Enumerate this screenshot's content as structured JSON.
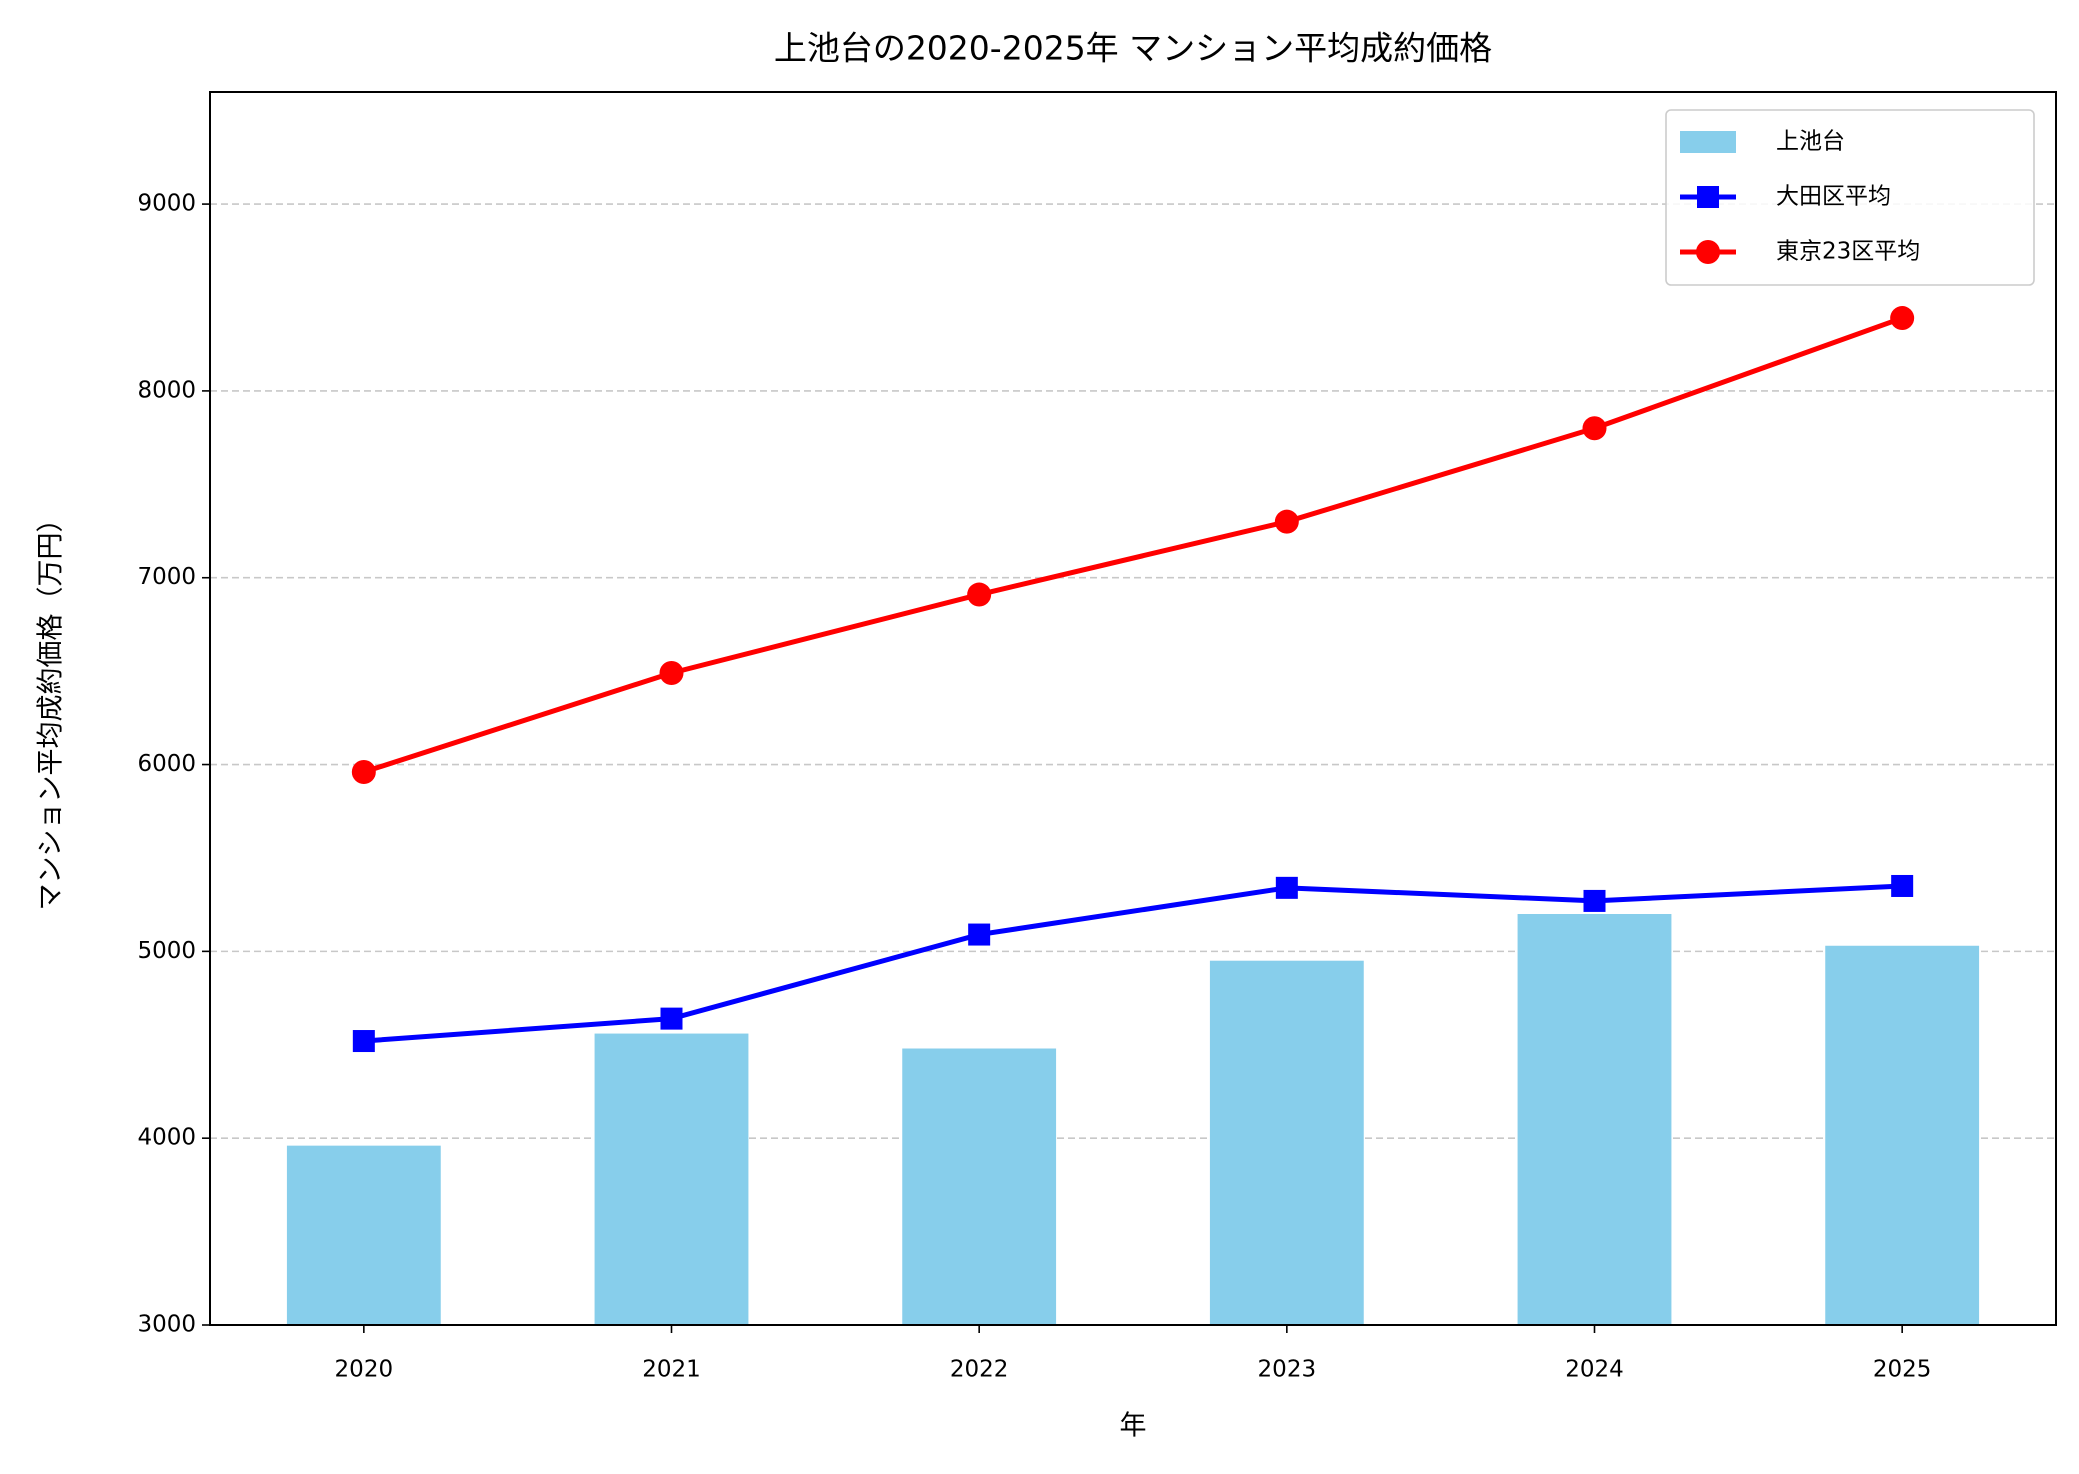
{
  "chart_data": {
    "type": "combo",
    "title": "上池台の2020-2025年 マンション平均成約価格",
    "x_label": "年",
    "y_label": "マンション平均成約価格（万円）",
    "categories": [
      "2020",
      "2021",
      "2022",
      "2023",
      "2024",
      "2025"
    ],
    "series": [
      {
        "name": "上池台",
        "type": "bar",
        "color": "#87ceeb",
        "values": [
          3960,
          4560,
          4480,
          4950,
          5200,
          5030
        ]
      },
      {
        "name": "大田区平均",
        "type": "line",
        "marker": "square",
        "color": "#0000ff",
        "values": [
          4520,
          4640,
          5090,
          5340,
          5270,
          5350
        ]
      },
      {
        "name": "東京23区平均",
        "type": "line",
        "marker": "circle",
        "color": "#ff0000",
        "values": [
          5960,
          6490,
          6910,
          7300,
          7800,
          8390
        ]
      }
    ],
    "ylim": [
      3000,
      9600
    ],
    "yticks": [
      3000,
      4000,
      5000,
      6000,
      7000,
      8000,
      9000
    ],
    "grid": true,
    "legend": "upper-right"
  }
}
